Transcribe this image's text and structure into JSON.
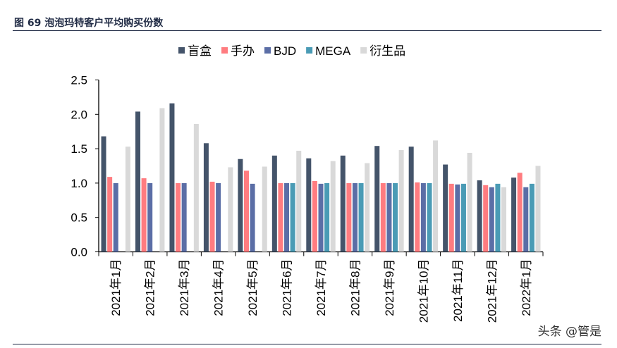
{
  "title": "图 69  泡泡玛特客户平均购买份数",
  "watermark": "头条 @管是",
  "chart_data": {
    "type": "bar",
    "title": "",
    "xlabel": "",
    "ylabel": "",
    "ylim": [
      0,
      2.5
    ],
    "yticks": [
      "0.0",
      "0.5",
      "1.0",
      "1.5",
      "2.0",
      "2.5"
    ],
    "grid": false,
    "legend_position": "top",
    "categories": [
      "2021年1月",
      "2021年2月",
      "2021年3月",
      "2021年4月",
      "2021年5月",
      "2021年6月",
      "2021年7月",
      "2021年8月",
      "2021年9月",
      "2021年10月",
      "2021年11月",
      "2021年12月",
      "2022年1月"
    ],
    "series": [
      {
        "name": "盲盒",
        "color": "#44546a",
        "values": [
          1.68,
          2.04,
          2.16,
          1.58,
          1.35,
          1.4,
          1.36,
          1.4,
          1.54,
          1.53,
          1.27,
          1.04,
          1.08
        ]
      },
      {
        "name": "手办",
        "color": "#ff7c80",
        "values": [
          1.09,
          1.07,
          1.0,
          1.02,
          1.18,
          1.0,
          1.03,
          1.0,
          1.0,
          1.01,
          0.99,
          0.97,
          1.15
        ]
      },
      {
        "name": "BJD",
        "color": "#5b6ea6",
        "values": [
          1.0,
          1.0,
          1.0,
          1.0,
          0.99,
          1.0,
          0.99,
          1.0,
          1.0,
          1.0,
          0.98,
          0.94,
          0.94
        ]
      },
      {
        "name": "MEGA",
        "color": "#4a9bb5",
        "values": [
          null,
          null,
          null,
          null,
          null,
          1.0,
          1.0,
          1.0,
          1.0,
          1.0,
          0.99,
          0.99,
          0.99
        ]
      },
      {
        "name": "衍生品",
        "color": "#d9d9d9",
        "values": [
          1.53,
          2.09,
          1.86,
          1.23,
          1.24,
          1.47,
          1.32,
          1.29,
          1.48,
          1.62,
          1.44,
          0.94,
          1.25
        ]
      }
    ]
  }
}
